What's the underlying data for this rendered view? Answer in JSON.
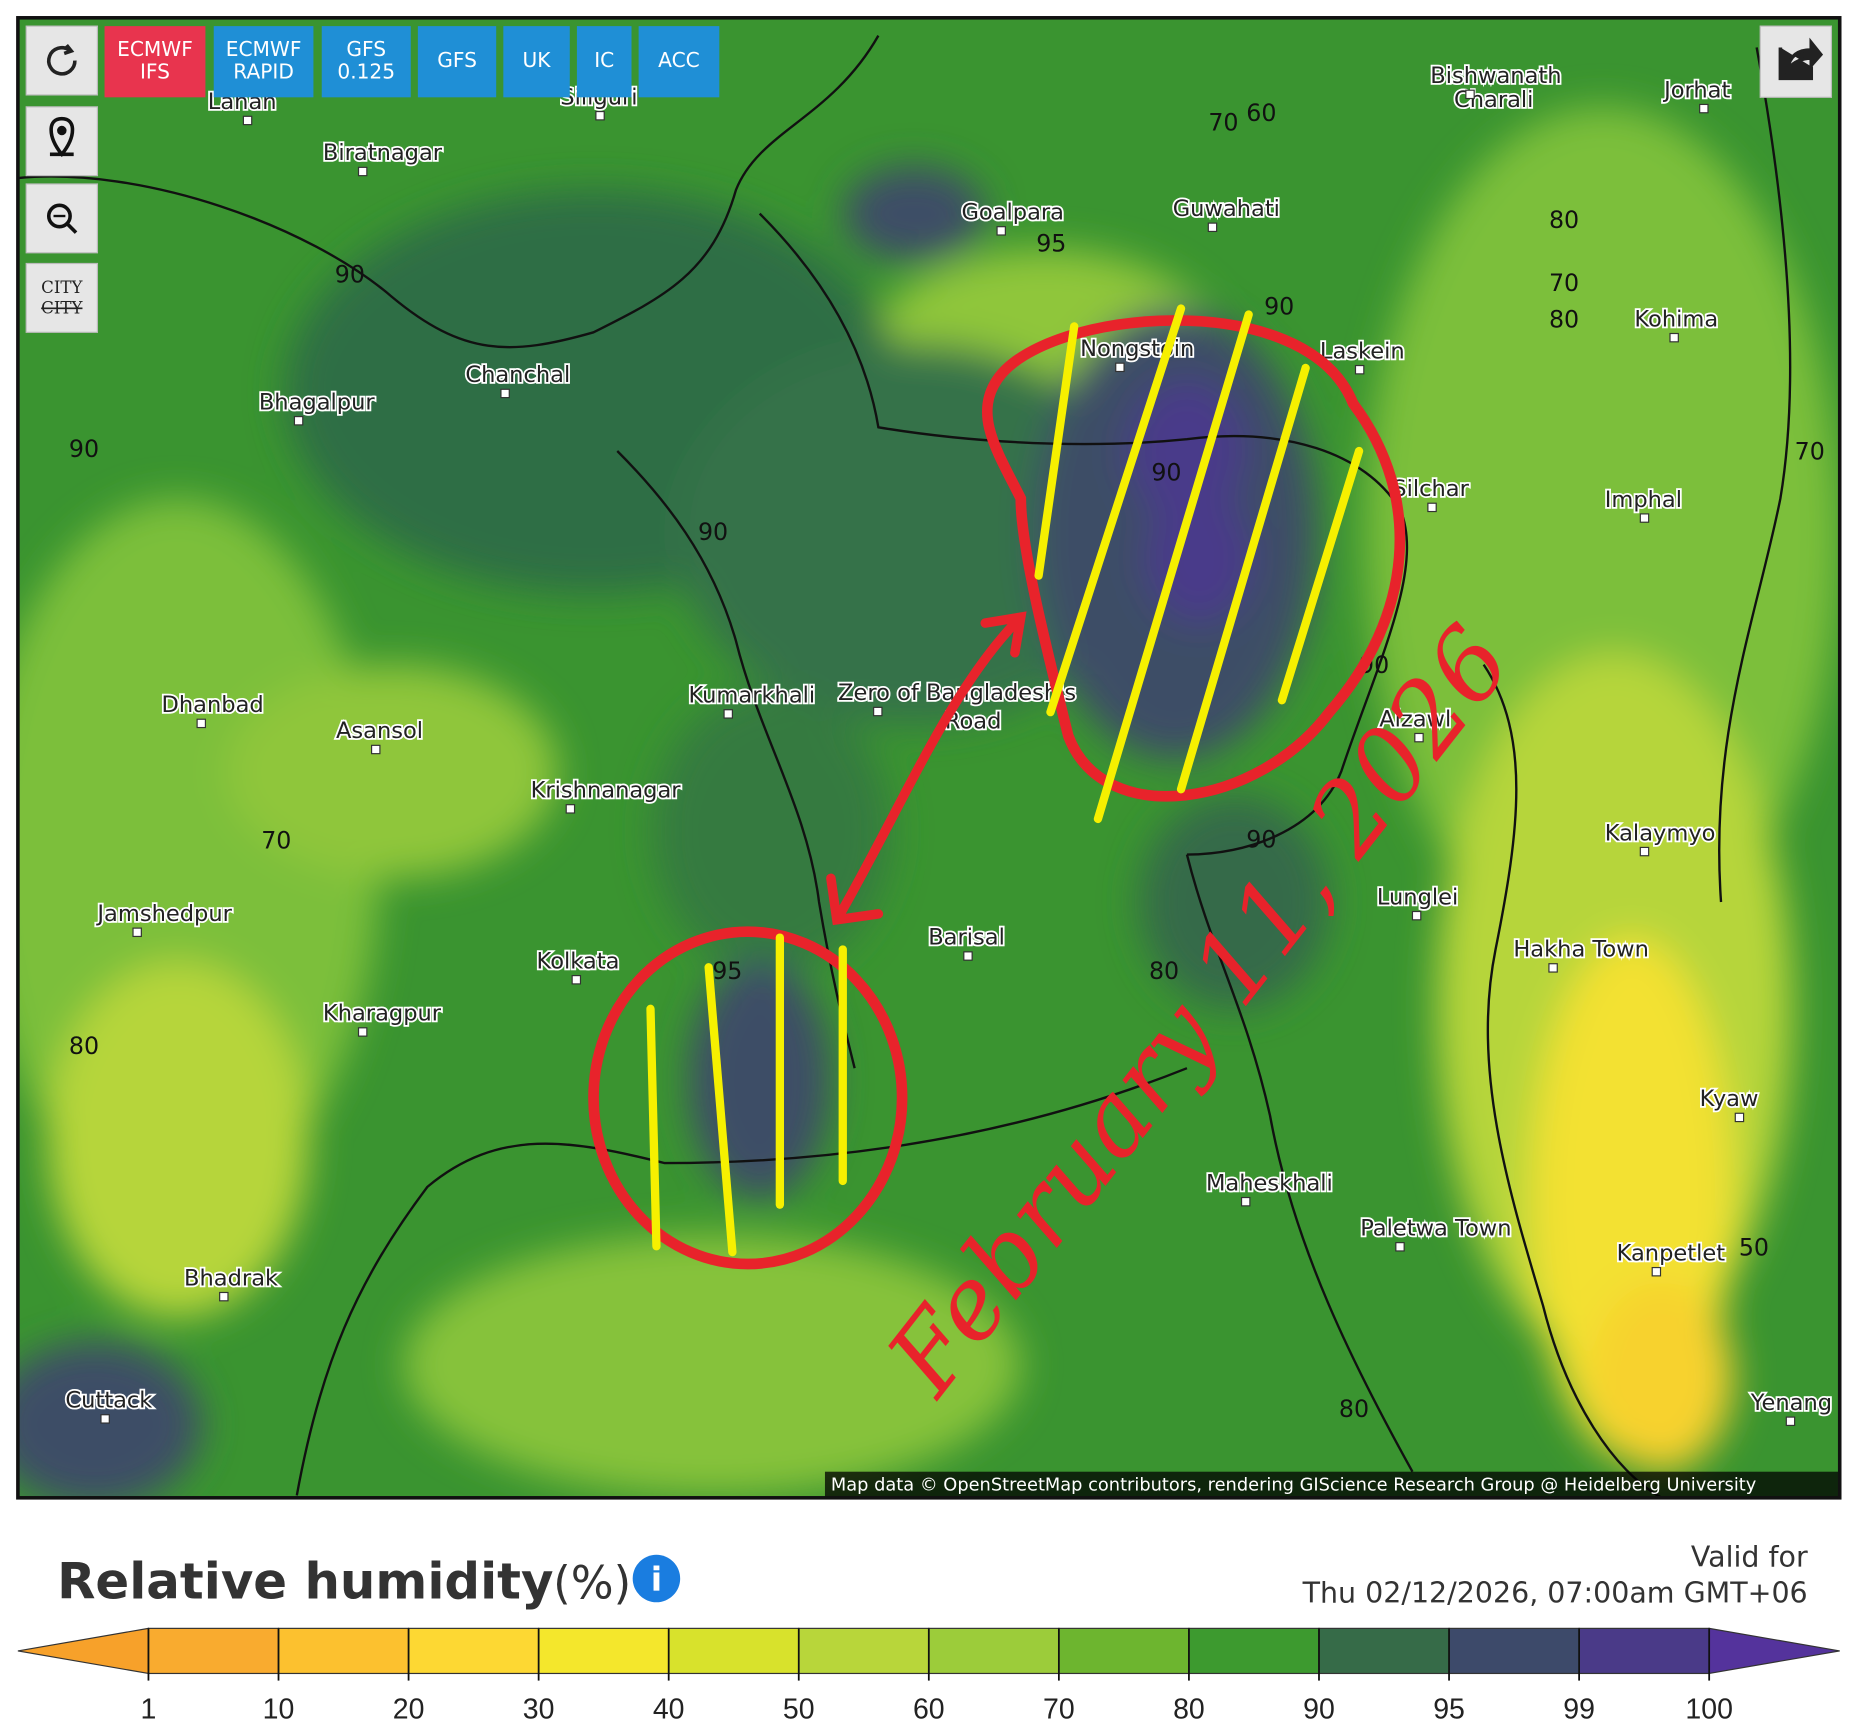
{
  "toolbar": {
    "models": [
      {
        "lines": [
          "ECMWF",
          "IFS"
        ],
        "active": true
      },
      {
        "lines": [
          "ECMWF",
          "RAPID"
        ],
        "active": false
      },
      {
        "lines": [
          "GFS",
          "0.125"
        ],
        "active": false
      },
      {
        "lines": [
          "GFS"
        ],
        "active": false
      },
      {
        "lines": [
          "UK"
        ],
        "active": false
      },
      {
        "lines": [
          "IC"
        ],
        "active": false
      },
      {
        "lines": [
          "ACC"
        ],
        "active": false
      }
    ],
    "city_toggle": [
      "CITY",
      "CITY"
    ]
  },
  "map": {
    "places": [
      "Lahan",
      "Siliguri",
      "Biratnagar",
      "Bishwanath Charali",
      "Jorhat",
      "Goalpara",
      "Guwahati",
      "Kohima",
      "Nongstoin",
      "Laskein",
      "Chanchal",
      "Bhagalpur",
      "Silchar",
      "Imphal",
      "Dhanbad",
      "Asansol",
      "Kumarkhali",
      "Zero of Bangladesh's Road",
      "Aizawl",
      "Krishnanagar",
      "Kalaymyo",
      "Jamshedpur",
      "Barisal",
      "Kolkata",
      "Lunglei",
      "Hakha Town",
      "Kharagpur",
      "Kyaw",
      "Maheskhali",
      "Paletwa Town",
      "Kanpetlet",
      "Bhadrak",
      "Cuttack",
      "Yenang"
    ],
    "contour_labels": [
      "70",
      "60",
      "90",
      "90",
      "90",
      "90",
      "90",
      "95",
      "80",
      "70",
      "80",
      "70",
      "90",
      "70",
      "80",
      "90",
      "50",
      "80",
      "95",
      "80"
    ],
    "attribution": "Map data © OpenStreetMap contributors, rendering GIScience Research Group @ Heidelberg University"
  },
  "annotation": "February 11, 2026",
  "legend": {
    "title": "Relative humidity",
    "unit": "(%)",
    "info": "i",
    "valid_label": "Valid for",
    "valid_time": "Thu 02/12/2026, 07:00am GMT+06",
    "ticks": [
      1,
      10,
      20,
      30,
      40,
      50,
      60,
      70,
      80,
      90,
      95,
      99,
      100
    ],
    "colors": [
      "#f7a12a",
      "#f9ab2f",
      "#fcc12f",
      "#fdd833",
      "#f4e72c",
      "#d8e22c",
      "#b8d63a",
      "#9ccc3a",
      "#6db52f",
      "#3d9a2f",
      "#366b48",
      "#3d4a6a",
      "#4a3a88",
      "#54339c"
    ]
  }
}
